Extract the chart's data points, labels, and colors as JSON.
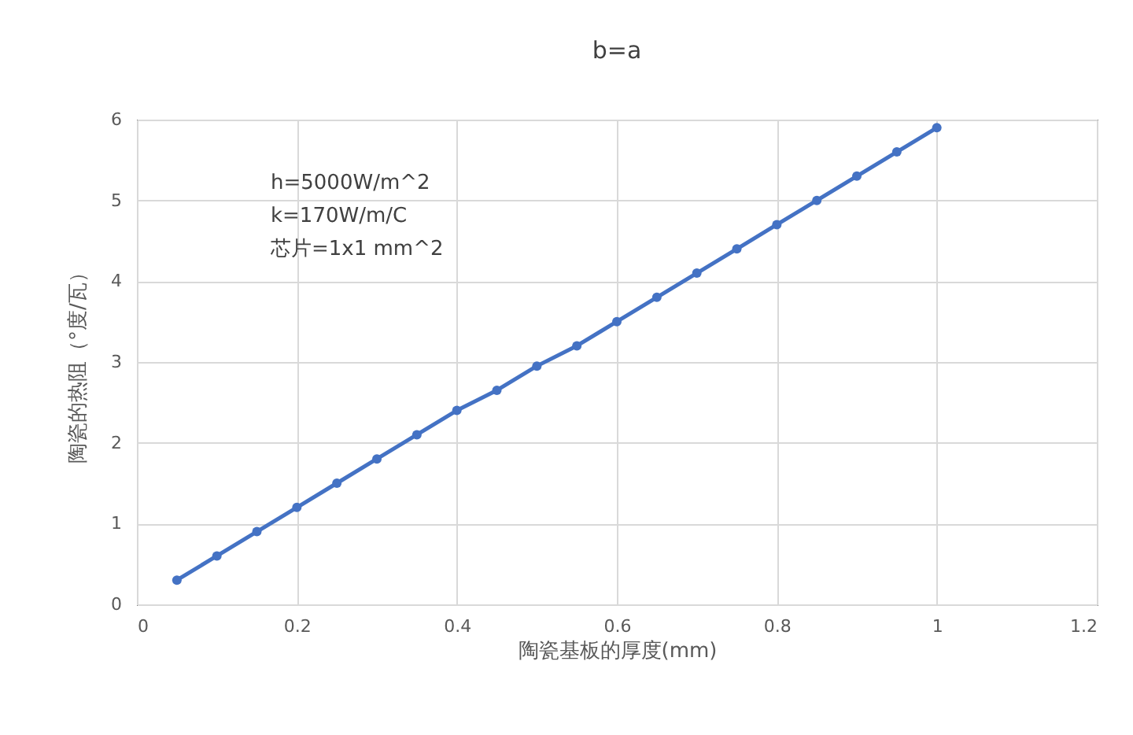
{
  "chart_data": {
    "type": "line",
    "title": "b=a",
    "xlabel": "陶瓷基板的厚度(mm)",
    "ylabel": "陶瓷的热阻（°度/瓦）",
    "annotations": [
      "h=5000W/m^2",
      "k=170W/m/C",
      "芯片=1x1 mm^2"
    ],
    "x": [
      0.05,
      0.1,
      0.15,
      0.2,
      0.25,
      0.3,
      0.35,
      0.4,
      0.45,
      0.5,
      0.55,
      0.6,
      0.65,
      0.7,
      0.75,
      0.8,
      0.85,
      0.9,
      0.95,
      1.0
    ],
    "series": [
      {
        "color": "#4472c4",
        "values": [
          0.3,
          0.6,
          0.9,
          1.2,
          1.5,
          1.8,
          2.1,
          2.4,
          2.65,
          2.95,
          3.2,
          3.5,
          3.8,
          4.1,
          4.4,
          4.7,
          5.0,
          5.3,
          5.6,
          5.9
        ]
      }
    ],
    "xlim": [
      0,
      1.2
    ],
    "xticks": [
      0,
      0.2,
      0.4,
      0.6,
      0.8,
      1,
      1.2
    ],
    "ylim": [
      0,
      6
    ],
    "yticks": [
      0,
      1,
      2,
      3,
      4,
      5,
      6
    ],
    "grid": true,
    "marker": "circle",
    "line_style": "solid"
  }
}
